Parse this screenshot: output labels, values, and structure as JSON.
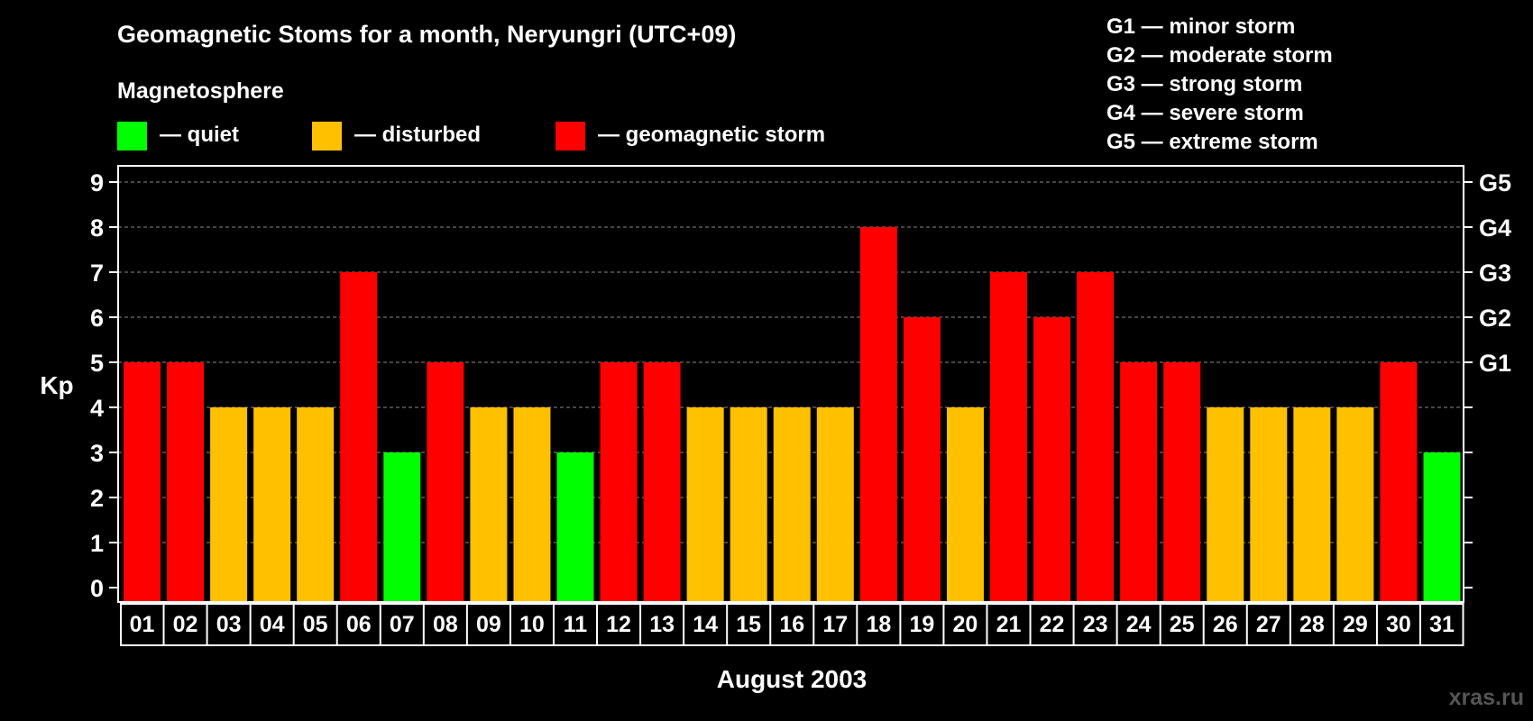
{
  "chart_data": {
    "type": "bar",
    "title": "Geomagnetic Stoms for a month, Neryungri (UTC+09)",
    "legend_heading": "Magnetosphere",
    "legend": [
      {
        "label": "— quiet",
        "color": "#00ff00"
      },
      {
        "label": "— disturbed",
        "color": "#ffc000"
      },
      {
        "label": "— geomagnetic storm",
        "color": "#ff0000"
      }
    ],
    "storm_scale": [
      "G1 — minor storm",
      "G2 — moderate storm",
      "G3 — strong storm",
      "G4 — severe storm",
      "G5 — extreme storm"
    ],
    "ylabel": "Kp",
    "xlabel": "August 2003",
    "ylim": [
      0,
      9
    ],
    "y_ticks": [
      "0",
      "1",
      "2",
      "3",
      "4",
      "5",
      "6",
      "7",
      "8",
      "9"
    ],
    "right_axis_labels": [
      {
        "label": "G1",
        "kp": 5
      },
      {
        "label": "G2",
        "kp": 6
      },
      {
        "label": "G3",
        "kp": 7
      },
      {
        "label": "G4",
        "kp": 8
      },
      {
        "label": "G5",
        "kp": 9
      }
    ],
    "grid": "horizontal dashed",
    "categories": [
      "01",
      "02",
      "03",
      "04",
      "05",
      "06",
      "07",
      "08",
      "09",
      "10",
      "11",
      "12",
      "13",
      "14",
      "15",
      "16",
      "17",
      "18",
      "19",
      "20",
      "21",
      "22",
      "23",
      "24",
      "25",
      "26",
      "27",
      "28",
      "29",
      "30",
      "31"
    ],
    "values": [
      5,
      5,
      4,
      4,
      4,
      7,
      3,
      5,
      4,
      4,
      3,
      5,
      5,
      4,
      4,
      4,
      4,
      8,
      6,
      4,
      7,
      6,
      7,
      5,
      5,
      4,
      4,
      4,
      4,
      5,
      3
    ],
    "colors": {
      "quiet": "#00ff00",
      "disturbed": "#ffc000",
      "storm": "#ff0000"
    }
  },
  "watermark": "xras.ru"
}
